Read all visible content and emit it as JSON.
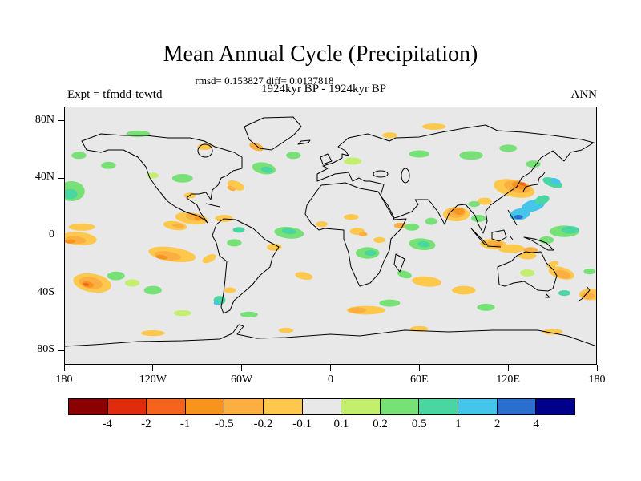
{
  "header": {
    "title": "Mean Annual Cycle (Precipitation)",
    "stats_line": "rmsd= 0.153827 diff= 0.0137818",
    "period_line": "1924kyr BP - 1924kyr BP",
    "expt_label": "Expt = tfmdd-tewtd",
    "season_label": "ANN"
  },
  "axes": {
    "y_ticks": [
      {
        "label": "80N",
        "lat": 80
      },
      {
        "label": "40N",
        "lat": 40
      },
      {
        "label": "0",
        "lat": 0
      },
      {
        "label": "40S",
        "lat": -40
      },
      {
        "label": "80S",
        "lat": -80
      }
    ],
    "x_ticks": [
      {
        "label": "180",
        "lon": -180
      },
      {
        "label": "120W",
        "lon": -120
      },
      {
        "label": "60W",
        "lon": -60
      },
      {
        "label": "0",
        "lon": 0
      },
      {
        "label": "60E",
        "lon": 60
      },
      {
        "label": "120E",
        "lon": 120
      },
      {
        "label": "180",
        "lon": 180
      }
    ]
  },
  "colorbar": {
    "labels": [
      "-4",
      "-2",
      "-1",
      "-0.5",
      "-0.2",
      "-0.1",
      "0.1",
      "0.2",
      "0.5",
      "1",
      "2",
      "4"
    ]
  },
  "chart_data": {
    "type": "heatmap",
    "title": "Mean Annual Cycle (Precipitation)",
    "variable": "Precipitation difference",
    "experiment": "tfmdd-tewtd",
    "season": "ANN",
    "period": "1924kyr BP - 1924kyr BP",
    "rmsd": 0.153827,
    "diff": 0.0137818,
    "lon_range": [
      -180,
      180
    ],
    "lat_range": [
      -90,
      90
    ],
    "contour_levels": [
      -4,
      -2,
      -1,
      -0.5,
      -0.2,
      -0.1,
      0.1,
      0.2,
      0.5,
      1,
      2,
      4
    ],
    "level_ranges": [
      "<-4",
      "-4..-2",
      "-2..-1",
      "-1..-0.5",
      "-0.5..-0.2",
      "-0.2..-0.1",
      "-0.1..0.1",
      "0.1..0.2",
      "0.2..0.5",
      "0.5..1",
      "1..2",
      "2..4",
      ">4"
    ],
    "palette": [
      "#8b0000",
      "#e02c0c",
      "#f4641e",
      "#f7941d",
      "#fbae42",
      "#fdc84b",
      "#e8e8e8",
      "#c4ef6e",
      "#77e077",
      "#49d6a0",
      "#45c5ea",
      "#2b6fce",
      "#00008b"
    ],
    "background_color": "#e8e8e8",
    "patch_format": "lon,lat,rx_deg,ry_deg,rotation_deg,palette_index",
    "anomaly_patches": [
      [
        -168,
        6,
        9,
        2.5,
        0,
        5
      ],
      [
        -170,
        -2,
        12,
        4.5,
        5,
        5
      ],
      [
        -172,
        -3,
        7,
        2.5,
        5,
        4
      ],
      [
        -176,
        -4,
        3.5,
        1.5,
        0,
        3
      ],
      [
        -107,
        -13,
        16,
        5,
        8,
        5
      ],
      [
        -110,
        -14,
        9,
        3,
        8,
        4
      ],
      [
        -114,
        -15,
        4,
        1.5,
        8,
        3
      ],
      [
        -82,
        -16,
        5,
        2.5,
        -25,
        5
      ],
      [
        -161,
        -33,
        13,
        6.5,
        10,
        5
      ],
      [
        -162,
        -33,
        8,
        4,
        10,
        4
      ],
      [
        -164,
        -34,
        4,
        2,
        10,
        3
      ],
      [
        -165,
        -34,
        2,
        1,
        10,
        2
      ],
      [
        -94,
        12,
        11,
        4,
        8,
        5
      ],
      [
        -92,
        13,
        6,
        2.5,
        8,
        4
      ],
      [
        -89,
        12,
        3,
        1.5,
        8,
        3
      ],
      [
        -72,
        12,
        6,
        2.5,
        0,
        5
      ],
      [
        -105,
        7,
        8,
        3,
        8,
        5
      ],
      [
        -103,
        7,
        4,
        1.5,
        8,
        4
      ],
      [
        -95,
        28,
        4,
        2,
        0,
        5
      ],
      [
        -64,
        35,
        6,
        3,
        20,
        5
      ],
      [
        -67,
        33,
        3,
        1.5,
        20,
        4
      ],
      [
        -50,
        62,
        5,
        2.5,
        20,
        4
      ],
      [
        -85,
        62,
        5,
        2.2,
        0,
        5
      ],
      [
        70,
        76,
        8,
        2.2,
        0,
        5
      ],
      [
        40,
        70,
        5,
        2,
        0,
        5
      ],
      [
        -38,
        -8,
        5,
        2.5,
        0,
        5
      ],
      [
        -68,
        -38,
        4,
        2,
        0,
        5
      ],
      [
        -18,
        -28,
        6,
        2.5,
        10,
        5
      ],
      [
        24,
        -52,
        13,
        3,
        0,
        5
      ],
      [
        18,
        -52,
        6,
        2,
        0,
        4
      ],
      [
        18,
        3,
        5,
        2.5,
        0,
        5
      ],
      [
        22,
        1,
        3,
        1.5,
        0,
        4
      ],
      [
        33,
        -3,
        4,
        2,
        0,
        5
      ],
      [
        14,
        13,
        5,
        2,
        0,
        5
      ],
      [
        -6,
        8,
        4,
        2,
        0,
        5
      ],
      [
        47,
        7,
        4,
        2,
        0,
        4
      ],
      [
        65,
        -32,
        10,
        3.5,
        5,
        5
      ],
      [
        90,
        -38,
        8,
        3,
        0,
        5
      ],
      [
        85,
        15,
        9,
        5,
        0,
        5
      ],
      [
        85,
        16,
        6,
        3.5,
        0,
        4
      ],
      [
        87,
        17,
        3.5,
        2.5,
        0,
        3
      ],
      [
        124,
        33,
        14,
        6,
        12,
        5
      ],
      [
        126,
        34,
        9,
        4,
        12,
        4
      ],
      [
        128,
        35,
        5.5,
        2.5,
        12,
        3
      ],
      [
        130,
        36,
        2.5,
        1.2,
        12,
        2
      ],
      [
        104,
        24,
        5,
        2.5,
        0,
        5
      ],
      [
        110,
        -6,
        9,
        3.5,
        5,
        5
      ],
      [
        111,
        -6,
        6,
        2.2,
        5,
        4
      ],
      [
        113,
        -7,
        3,
        1.2,
        5,
        3
      ],
      [
        122,
        -9,
        9,
        3,
        0,
        5
      ],
      [
        135,
        -10,
        5,
        2,
        0,
        4
      ],
      [
        133,
        -14,
        6,
        2.5,
        0,
        5
      ],
      [
        150,
        -20,
        4,
        2,
        -20,
        5
      ],
      [
        156,
        -26,
        9,
        4,
        15,
        5
      ],
      [
        157,
        -27,
        5.5,
        2.7,
        15,
        4
      ],
      [
        176,
        -41,
        8,
        4,
        0,
        5
      ],
      [
        174,
        -42,
        4.5,
        2.5,
        0,
        4
      ],
      [
        -120,
        -68,
        8,
        2,
        0,
        5
      ],
      [
        60,
        -65,
        6,
        2,
        0,
        5
      ],
      [
        150,
        -67,
        7,
        2,
        0,
        5
      ],
      [
        -30,
        -66,
        5,
        1.8,
        0,
        5
      ],
      [
        -175,
        31,
        9,
        7,
        0,
        8
      ],
      [
        -176,
        29,
        5,
        3.5,
        0,
        9
      ],
      [
        -150,
        49,
        5,
        2.5,
        0,
        8
      ],
      [
        -170,
        56,
        5,
        2.5,
        0,
        8
      ],
      [
        -130,
        71,
        8,
        2.3,
        0,
        8
      ],
      [
        -100,
        40,
        7,
        3,
        0,
        8
      ],
      [
        -120,
        42,
        4,
        2,
        0,
        7
      ],
      [
        -45,
        47,
        8,
        4,
        10,
        8
      ],
      [
        -43,
        46,
        4,
        2,
        10,
        9
      ],
      [
        -25,
        56,
        5,
        2.5,
        0,
        8
      ],
      [
        15,
        52,
        6,
        2.5,
        0,
        7
      ],
      [
        60,
        57,
        7,
        2.5,
        0,
        8
      ],
      [
        95,
        56,
        8,
        3,
        0,
        8
      ],
      [
        120,
        61,
        6,
        2.5,
        0,
        8
      ],
      [
        137,
        50,
        5,
        2.5,
        0,
        8
      ],
      [
        -28,
        2,
        10,
        4,
        5,
        8
      ],
      [
        -28,
        3,
        5,
        2,
        5,
        9
      ],
      [
        -62,
        4,
        4,
        2,
        0,
        9
      ],
      [
        -65,
        -5,
        5,
        2.5,
        0,
        8
      ],
      [
        -75,
        -45,
        4,
        3,
        0,
        9
      ],
      [
        -77,
        -47,
        2,
        1.4,
        0,
        10
      ],
      [
        25,
        -12,
        8,
        4,
        0,
        8
      ],
      [
        27,
        -12,
        4,
        2,
        0,
        9
      ],
      [
        50,
        -27,
        5,
        2.5,
        15,
        8
      ],
      [
        62,
        -6,
        9,
        4,
        5,
        8
      ],
      [
        63,
        -6,
        4,
        2,
        5,
        9
      ],
      [
        55,
        6,
        5,
        2.5,
        0,
        8
      ],
      [
        68,
        10,
        4,
        2.5,
        0,
        8
      ],
      [
        100,
        12,
        5,
        2.5,
        0,
        8
      ],
      [
        97,
        22,
        4,
        2,
        0,
        8
      ],
      [
        128,
        15,
        7,
        4,
        -10,
        10
      ],
      [
        127,
        13,
        3,
        1.5,
        0,
        11
      ],
      [
        137,
        21,
        8,
        4,
        -15,
        10
      ],
      [
        143,
        25,
        5,
        3,
        -15,
        9
      ],
      [
        150,
        37,
        7,
        3,
        20,
        9
      ],
      [
        152,
        38,
        3.5,
        2,
        20,
        10
      ],
      [
        158,
        3,
        10,
        4,
        0,
        8
      ],
      [
        162,
        4,
        6,
        2.6,
        0,
        9
      ],
      [
        146,
        -3,
        5,
        2.5,
        0,
        8
      ],
      [
        -145,
        -28,
        6,
        3,
        0,
        8
      ],
      [
        -134,
        -33,
        5,
        2.5,
        0,
        7
      ],
      [
        -120,
        -38,
        6,
        3,
        0,
        8
      ],
      [
        175,
        -25,
        4,
        2,
        0,
        8
      ],
      [
        133,
        -26,
        5,
        2.5,
        0,
        7
      ],
      [
        158,
        -40,
        4,
        2,
        0,
        9
      ],
      [
        40,
        -47,
        7,
        2.5,
        0,
        8
      ],
      [
        -55,
        -55,
        6,
        2,
        0,
        8
      ],
      [
        105,
        -50,
        6,
        2.5,
        0,
        8
      ],
      [
        -100,
        -54,
        6,
        2,
        0,
        7
      ]
    ]
  }
}
